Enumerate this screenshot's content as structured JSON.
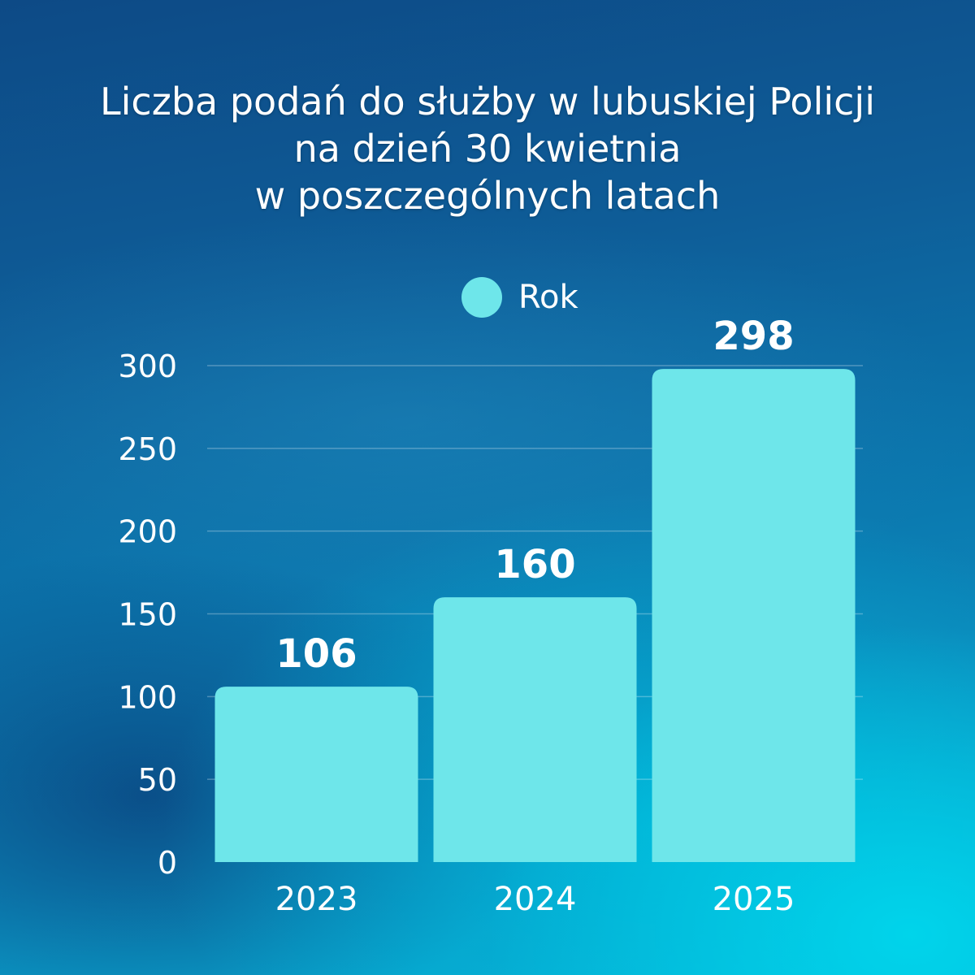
{
  "chart_data": {
    "type": "bar",
    "title": [
      "Liczba podań do służby w lubuskiej Policji",
      "na dzień 30 kwietnia",
      "w poszczególnych latach"
    ],
    "categories": [
      "2023",
      "2024",
      "2025"
    ],
    "series": [
      {
        "name": "Rok",
        "values": [
          106,
          160,
          298
        ]
      }
    ],
    "data_labels": [
      "106",
      "160",
      "298"
    ],
    "y_ticks": [
      0,
      50,
      100,
      150,
      200,
      250,
      300
    ],
    "ylim": [
      0,
      300
    ],
    "xlabel": "",
    "ylabel": "",
    "grid": true,
    "legend_position": "top-center",
    "bar_color": "#6ee6ea",
    "text_color": "#ffffff"
  }
}
